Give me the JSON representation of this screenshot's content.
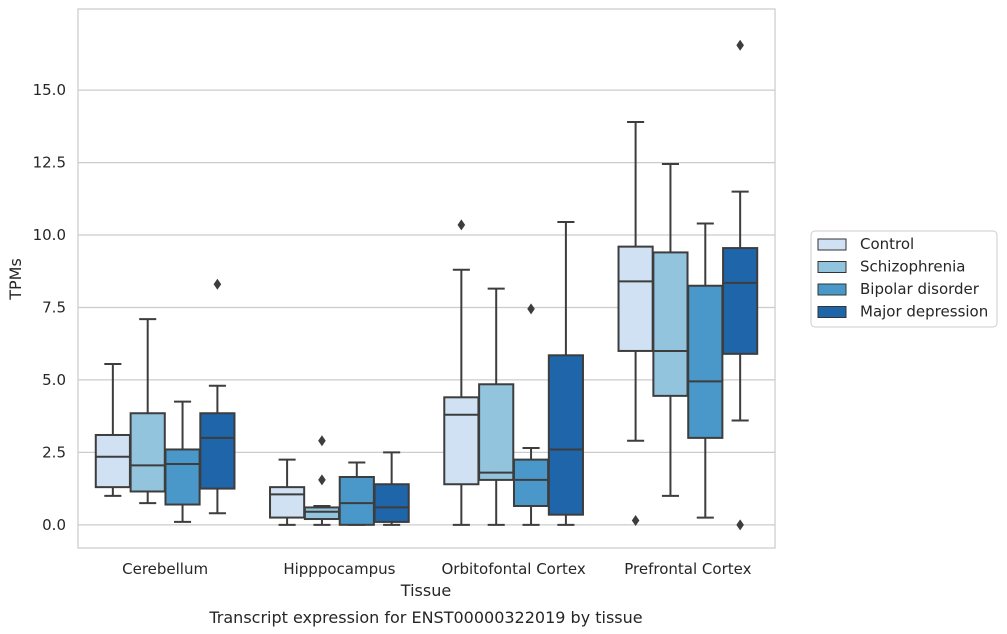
{
  "chart_data": {
    "type": "box",
    "xlabel": "Tissue",
    "ylabel": "TPMs",
    "caption": "Transcript expression for ENST00000322019 by tissue",
    "ylim": [
      -0.8,
      17.8
    ],
    "yticks": [
      0.0,
      2.5,
      5.0,
      7.5,
      10.0,
      12.5,
      15.0
    ],
    "ytick_labels": [
      "0.0",
      "2.5",
      "5.0",
      "7.5",
      "10.0",
      "12.5",
      "15.0"
    ],
    "grid": "horizontal",
    "legend_position": "right",
    "categories": [
      "Cerebellum",
      "Hipppocampus",
      "Orbitofontal Cortex",
      "Prefrontal Cortex"
    ],
    "series": [
      {
        "name": "Control",
        "color": "#cfe1f2",
        "boxes": [
          {
            "whislo": 1.0,
            "q1": 1.3,
            "med": 2.35,
            "q3": 3.1,
            "whishi": 5.55,
            "fliers": []
          },
          {
            "whislo": 0.0,
            "q1": 0.25,
            "med": 1.05,
            "q3": 1.3,
            "whishi": 2.25,
            "fliers": []
          },
          {
            "whislo": 0.0,
            "q1": 1.4,
            "med": 3.8,
            "q3": 4.4,
            "whishi": 8.8,
            "fliers": [
              10.35
            ]
          },
          {
            "whislo": 2.9,
            "q1": 6.0,
            "med": 8.4,
            "q3": 9.6,
            "whishi": 13.9,
            "fliers": [
              0.15
            ]
          }
        ]
      },
      {
        "name": "Schizophrenia",
        "color": "#93c4de",
        "boxes": [
          {
            "whislo": 0.75,
            "q1": 1.15,
            "med": 2.05,
            "q3": 3.85,
            "whishi": 7.1,
            "fliers": []
          },
          {
            "whislo": 0.0,
            "q1": 0.2,
            "med": 0.45,
            "q3": 0.6,
            "whishi": 0.65,
            "fliers": [
              1.55,
              2.9
            ]
          },
          {
            "whislo": 0.0,
            "q1": 1.55,
            "med": 1.8,
            "q3": 4.85,
            "whishi": 8.15,
            "fliers": []
          },
          {
            "whislo": 1.0,
            "q1": 4.45,
            "med": 6.0,
            "q3": 9.4,
            "whishi": 12.45,
            "fliers": []
          }
        ]
      },
      {
        "name": "Bipolar disorder",
        "color": "#4a98c9",
        "boxes": [
          {
            "whislo": 0.1,
            "q1": 0.7,
            "med": 2.1,
            "q3": 2.6,
            "whishi": 4.25,
            "fliers": []
          },
          {
            "whislo": 0.0,
            "q1": 0.0,
            "med": 0.75,
            "q3": 1.65,
            "whishi": 2.15,
            "fliers": []
          },
          {
            "whislo": 0.0,
            "q1": 0.65,
            "med": 1.55,
            "q3": 2.25,
            "whishi": 2.65,
            "fliers": [
              7.45
            ]
          },
          {
            "whislo": 0.25,
            "q1": 3.0,
            "med": 4.95,
            "q3": 8.25,
            "whishi": 10.4,
            "fliers": []
          }
        ]
      },
      {
        "name": "Major depression",
        "color": "#1f65a9",
        "boxes": [
          {
            "whislo": 0.4,
            "q1": 1.25,
            "med": 3.0,
            "q3": 3.85,
            "whishi": 4.8,
            "fliers": [
              8.3
            ]
          },
          {
            "whislo": 0.0,
            "q1": 0.1,
            "med": 0.6,
            "q3": 1.4,
            "whishi": 2.5,
            "fliers": []
          },
          {
            "whislo": 0.0,
            "q1": 0.35,
            "med": 2.6,
            "q3": 5.85,
            "whishi": 10.45,
            "fliers": []
          },
          {
            "whislo": 3.6,
            "q1": 5.9,
            "med": 8.35,
            "q3": 9.55,
            "whishi": 11.5,
            "fliers": [
              0.0,
              16.55
            ]
          }
        ]
      }
    ]
  }
}
